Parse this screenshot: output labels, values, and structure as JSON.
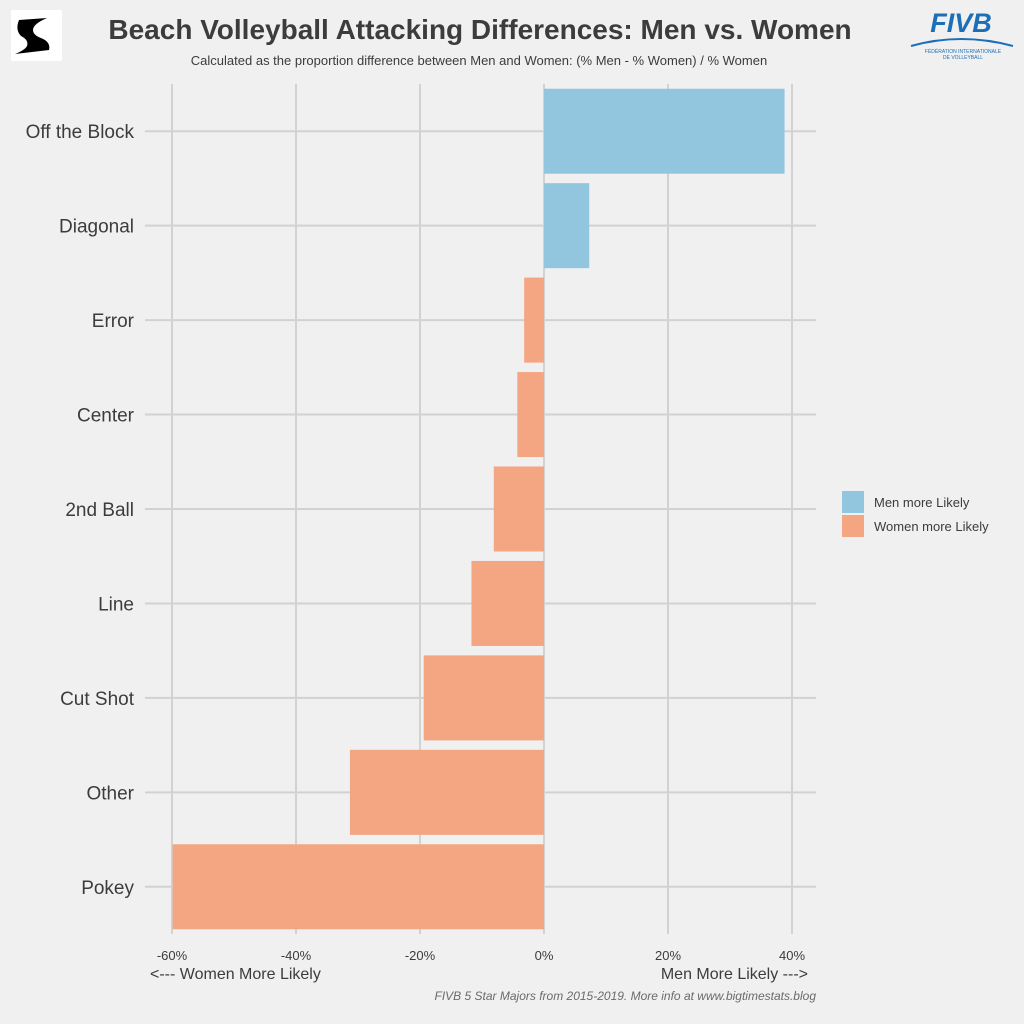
{
  "header": {
    "title": "Beach Volleyball Attacking Differences: Men vs. Women",
    "subtitle": "Calculated as the proportion difference between Men and Women: (% Men - % Women) / % Women"
  },
  "logos": {
    "left": "bigtimestats-logo",
    "right_text": "FIVB",
    "right_subtext_1": "FÉDÉRATION INTERNATIONALE",
    "right_subtext_2": "DE VOLLEYBALL"
  },
  "chart_data": {
    "type": "bar",
    "orientation": "horizontal",
    "categories": [
      "Off the Block",
      "Diagonal",
      "Error",
      "Center",
      "2nd Ball",
      "Line",
      "Cut Shot",
      "Other",
      "Pokey"
    ],
    "values": [
      38.8,
      7.3,
      -3.2,
      -4.3,
      -8.1,
      -11.7,
      -19.4,
      -31.3,
      -59.9
    ],
    "xlim": [
      -60,
      40
    ],
    "xticks": [
      -60,
      -40,
      -20,
      0,
      20,
      40
    ],
    "xtick_labels": [
      "-60%",
      "-40%",
      "-20%",
      "0%",
      "20%",
      "40%"
    ],
    "xlabel_left": "<--- Women More Likely",
    "xlabel_right": "Men More Likely --->",
    "grid": true,
    "legend_position": "right",
    "series": [
      {
        "name": "Men more Likely",
        "color": "#92c5de"
      },
      {
        "name": "Women more Likely",
        "color": "#f4a582"
      }
    ]
  },
  "legend": {
    "items": [
      {
        "label": "Men more Likely",
        "color": "#92c5de"
      },
      {
        "label": "Women more Likely",
        "color": "#f4a582"
      }
    ]
  },
  "caption": "FIVB 5 Star Majors from 2015-2019. More info at www.bigtimestats.blog"
}
